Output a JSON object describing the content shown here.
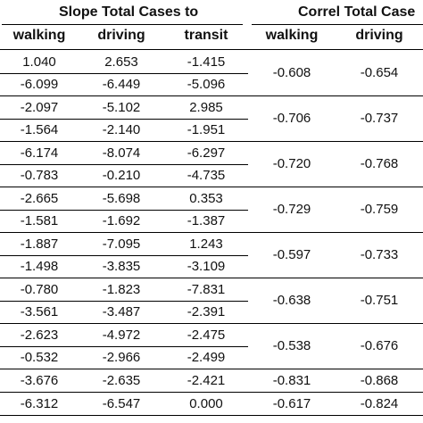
{
  "table": {
    "group_headers": {
      "slope": "Slope Total Cases to",
      "correl": "Correl Total Case"
    },
    "columns": [
      "walking",
      "driving",
      "transit",
      "walking",
      "driving"
    ],
    "groups": [
      {
        "slope": [
          [
            "1.040",
            "2.653",
            "-1.415"
          ],
          [
            "-6.099",
            "-6.449",
            "-5.096"
          ]
        ],
        "correl": [
          "-0.608",
          "-0.654"
        ]
      },
      {
        "slope": [
          [
            "-2.097",
            "-5.102",
            "2.985"
          ],
          [
            "-1.564",
            "-2.140",
            "-1.951"
          ]
        ],
        "correl": [
          "-0.706",
          "-0.737"
        ]
      },
      {
        "slope": [
          [
            "-6.174",
            "-8.074",
            "-6.297"
          ],
          [
            "-0.783",
            "-0.210",
            "-4.735"
          ]
        ],
        "correl": [
          "-0.720",
          "-0.768"
        ]
      },
      {
        "slope": [
          [
            "-2.665",
            "-5.698",
            "0.353"
          ],
          [
            "-1.581",
            "-1.692",
            "-1.387"
          ]
        ],
        "correl": [
          "-0.729",
          "-0.759"
        ]
      },
      {
        "slope": [
          [
            "-1.887",
            "-7.095",
            "1.243"
          ],
          [
            "-1.498",
            "-3.835",
            "-3.109"
          ]
        ],
        "correl": [
          "-0.597",
          "-0.733"
        ]
      },
      {
        "slope": [
          [
            "-0.780",
            "-1.823",
            "-7.831"
          ],
          [
            "-3.561",
            "-3.487",
            "-2.391"
          ]
        ],
        "correl": [
          "-0.638",
          "-0.751"
        ]
      },
      {
        "slope": [
          [
            "-2.623",
            "-4.972",
            "-2.475"
          ],
          [
            "-0.532",
            "-2.966",
            "-2.499"
          ]
        ],
        "correl": [
          "-0.538",
          "-0.676"
        ]
      },
      {
        "slope": [
          [
            "-3.676",
            "-2.635",
            "-2.421"
          ]
        ],
        "correl": [
          "-0.831",
          "-0.868"
        ]
      },
      {
        "slope": [
          [
            "-6.312",
            "-6.547",
            "0.000"
          ]
        ],
        "correl": [
          "-0.617",
          "-0.824"
        ]
      }
    ]
  }
}
